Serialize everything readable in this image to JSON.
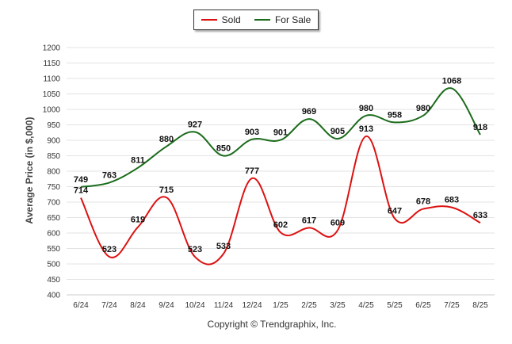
{
  "chart_data": {
    "type": "line",
    "categories": [
      "6/24",
      "7/24",
      "8/24",
      "9/24",
      "10/24",
      "11/24",
      "12/24",
      "1/25",
      "2/25",
      "3/25",
      "4/25",
      "5/25",
      "6/25",
      "7/25",
      "8/25"
    ],
    "series": [
      {
        "name": "Sold",
        "color": "#dd1111",
        "values": [
          714,
          523,
          619,
          715,
          523,
          533,
          777,
          602,
          617,
          609,
          913,
          647,
          678,
          683,
          633
        ]
      },
      {
        "name": "For Sale",
        "color": "#1a6b1a",
        "values": [
          749,
          763,
          811,
          880,
          927,
          850,
          903,
          901,
          969,
          905,
          980,
          958,
          980,
          1068,
          918
        ]
      }
    ],
    "ylabel": "Average Price (in $,000)",
    "ylim": [
      400,
      1200
    ],
    "yticks": [
      "400",
      "450",
      "500",
      "550",
      "600",
      "650",
      "700",
      "750",
      "800",
      "850",
      "900",
      "950",
      "1000",
      "1050",
      "1100",
      "1150",
      "1200"
    ],
    "grid": true,
    "legend_position": "top-center"
  },
  "footer": {
    "copyright": "Copyright © Trendgraphix, Inc."
  }
}
